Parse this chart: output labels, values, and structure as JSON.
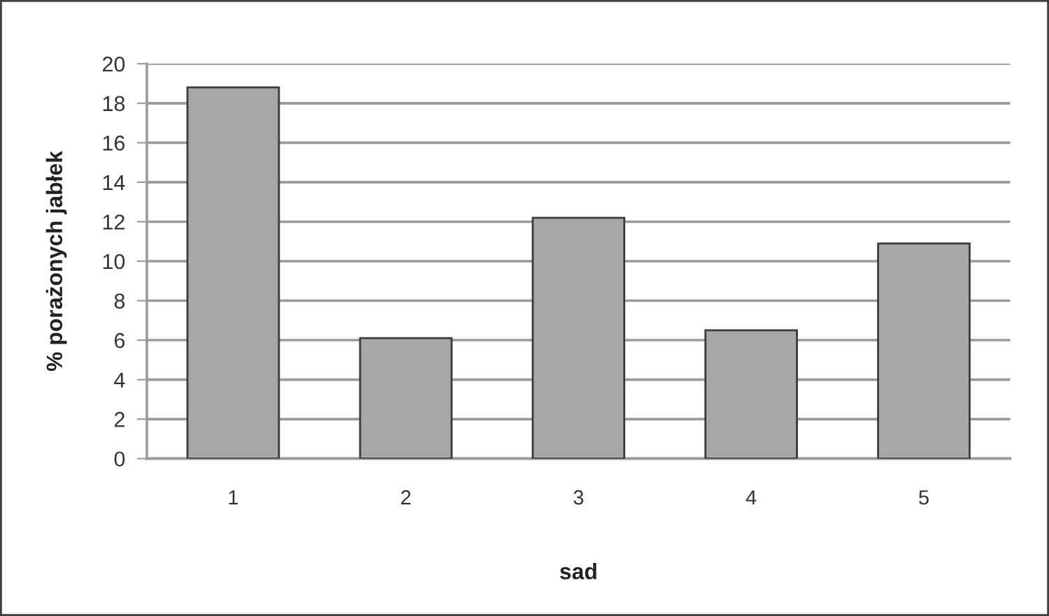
{
  "chart_data": {
    "type": "bar",
    "xlabel": "sad",
    "ylabel": "% porażonych jabłek",
    "categories": [
      "1",
      "2",
      "3",
      "4",
      "5"
    ],
    "values": [
      18.8,
      6.1,
      12.2,
      6.5,
      10.9
    ],
    "color": "#a6a8a7",
    "ylim": [
      0,
      20
    ],
    "yticks": [
      0,
      2,
      4,
      6,
      8,
      10,
      12,
      14,
      16,
      18,
      20
    ],
    "grid": "y"
  }
}
